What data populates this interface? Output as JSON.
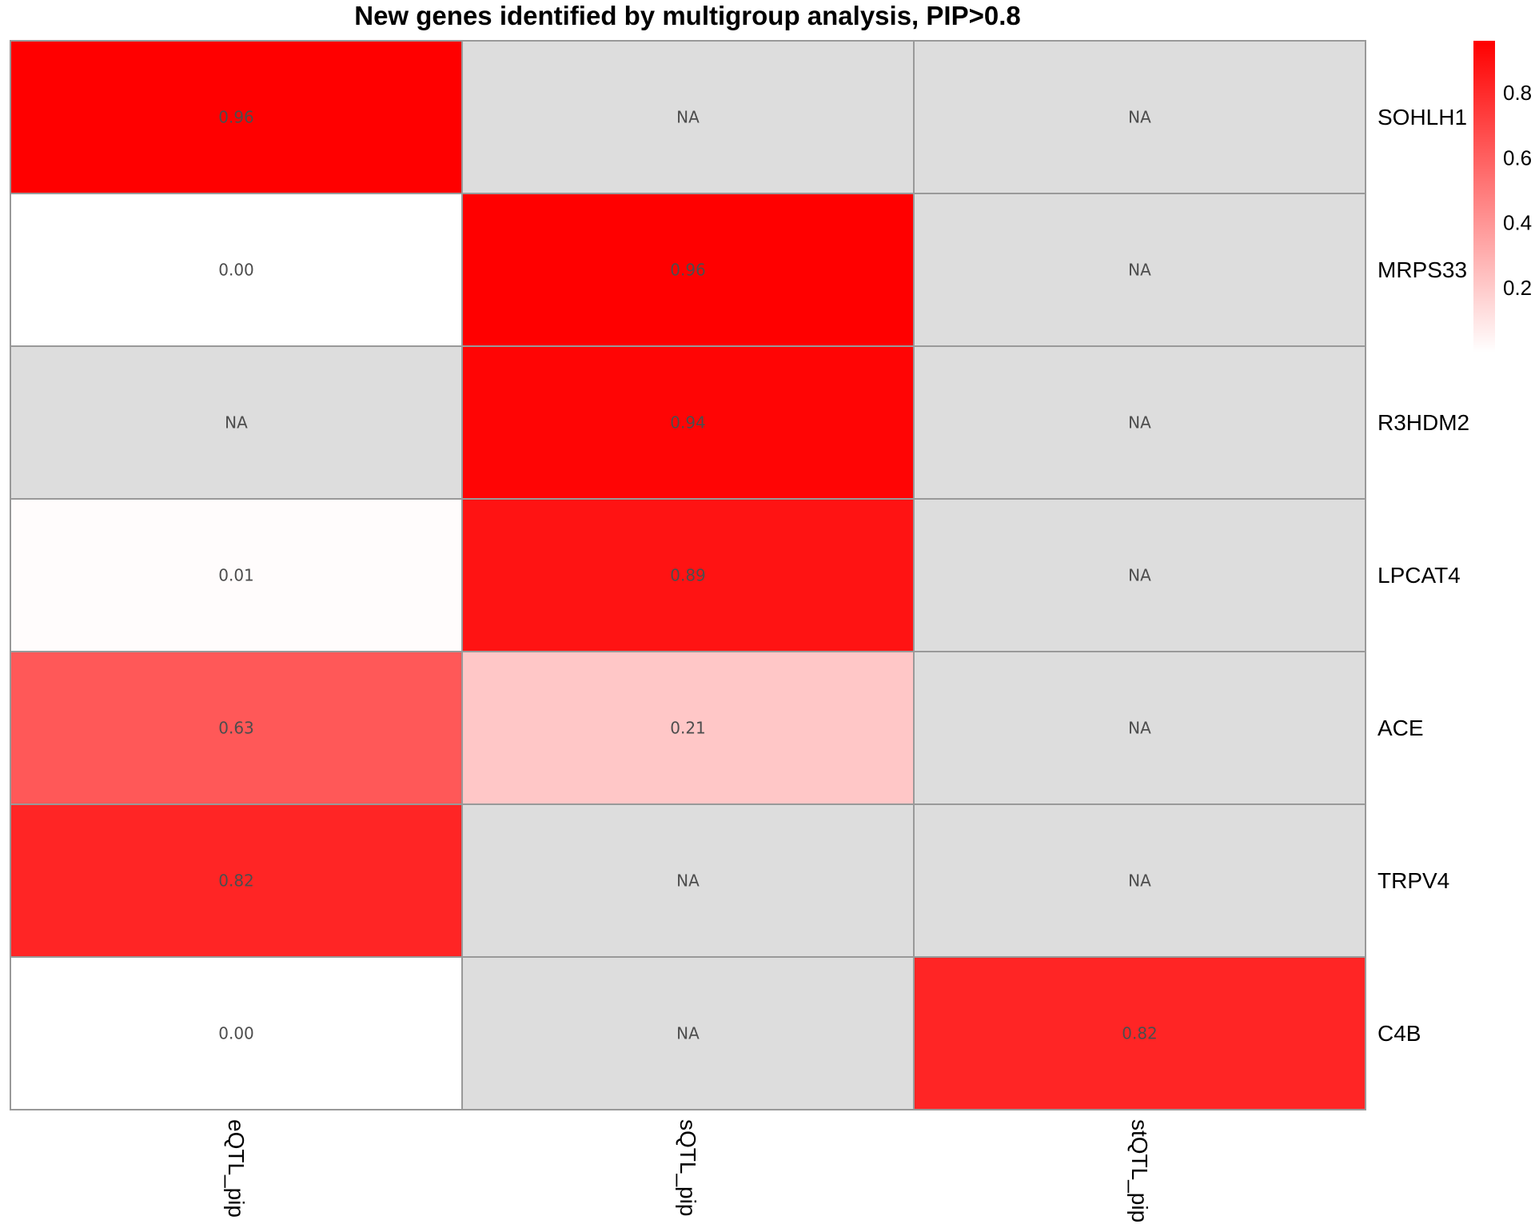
{
  "chart_data": {
    "type": "heatmap",
    "title": "New genes identified by multigroup analysis, PIP>0.8",
    "columns": [
      "eQTL_pip",
      "sQTL_pip",
      "stQTL_pip"
    ],
    "rows": [
      "SOHLH1",
      "MRPS33",
      "R3HDM2",
      "LPCAT4",
      "ACE",
      "TRPV4",
      "C4B"
    ],
    "values": [
      [
        0.96,
        null,
        null
      ],
      [
        0.0,
        0.96,
        null
      ],
      [
        null,
        0.94,
        null
      ],
      [
        0.01,
        0.89,
        null
      ],
      [
        0.63,
        0.21,
        null
      ],
      [
        0.82,
        null,
        null
      ],
      [
        0.0,
        null,
        0.82
      ]
    ],
    "cell_labels": [
      [
        "0.96",
        "NA",
        "NA"
      ],
      [
        "0.00",
        "0.96",
        "NA"
      ],
      [
        "NA",
        "0.94",
        "NA"
      ],
      [
        "0.01",
        "0.89",
        "NA"
      ],
      [
        "0.63",
        "0.21",
        "NA"
      ],
      [
        "0.82",
        "NA",
        "NA"
      ],
      [
        "0.00",
        "NA",
        "0.82"
      ]
    ],
    "legend": {
      "placement": "top-right",
      "min": 0,
      "max": 0.96,
      "ticks": [
        0.2,
        0.4,
        0.6,
        0.8
      ],
      "tick_labels": [
        "0.2",
        "0.4",
        "0.6",
        "0.8"
      ]
    },
    "colors": {
      "low": "#ffffff",
      "high": "#ff0000",
      "na": "#dddddd",
      "border": "#999999"
    }
  }
}
